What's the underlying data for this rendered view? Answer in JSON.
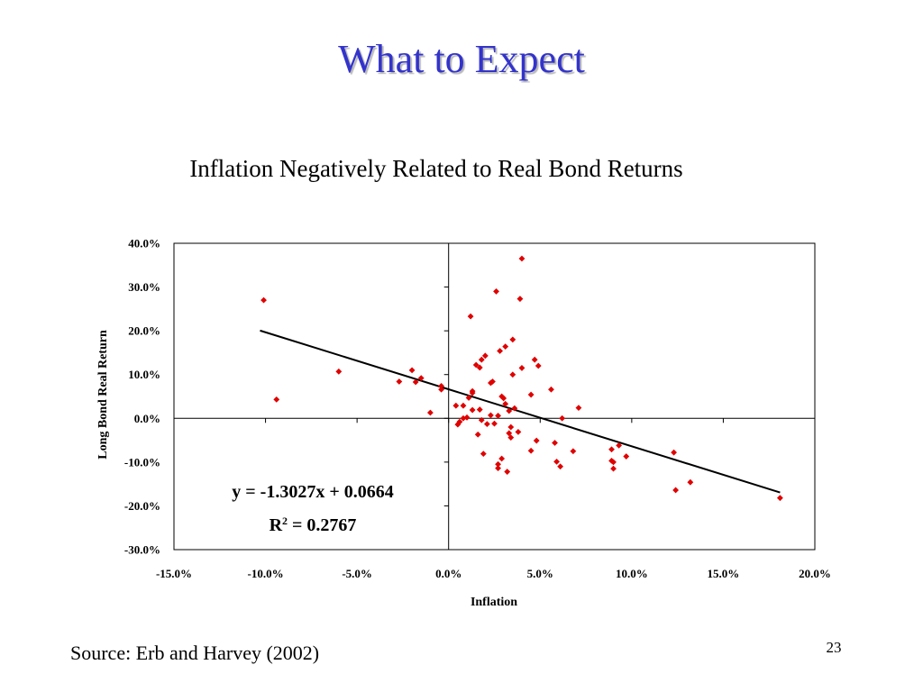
{
  "slide": {
    "title": "What to Expect",
    "source": "Source: Erb and Harvey (2002)",
    "page_number": "23"
  },
  "chart_data": {
    "type": "scatter",
    "title": "Inflation Negatively Related to Real Bond Returns",
    "xlabel": "Inflation",
    "ylabel": "Long Bond Real Return",
    "xlim": [
      -0.15,
      0.2
    ],
    "ylim": [
      -0.3,
      0.4
    ],
    "x_ticks": [
      -0.15,
      -0.1,
      -0.05,
      0.0,
      0.05,
      0.1,
      0.15,
      0.2
    ],
    "x_tick_labels": [
      "-15.0%",
      "-10.0%",
      "-5.0%",
      "0.0%",
      "5.0%",
      "10.0%",
      "15.0%",
      "20.0%"
    ],
    "y_ticks": [
      -0.3,
      -0.2,
      -0.1,
      0.0,
      0.1,
      0.2,
      0.3,
      0.4
    ],
    "y_tick_labels": [
      "-30.0%",
      "-20.0%",
      "-10.0%",
      "0.0%",
      "10.0%",
      "20.0%",
      "30.0%",
      "40.0%"
    ],
    "grid": false,
    "marker_color": "#e00000",
    "trendline": {
      "slope": -1.3027,
      "intercept": 0.0664,
      "r2": 0.2767,
      "x_range": [
        -0.103,
        0.181
      ],
      "equation_text": "y = -1.3027x + 0.0664",
      "r2_prefix": "R",
      "r2_exponent": "2",
      "r2_suffix": " = 0.2767"
    },
    "points": [
      [
        -0.101,
        0.27
      ],
      [
        -0.094,
        0.043
      ],
      [
        -0.06,
        0.107
      ],
      [
        -0.027,
        0.084
      ],
      [
        -0.02,
        0.11
      ],
      [
        -0.018,
        0.083
      ],
      [
        -0.015,
        0.092
      ],
      [
        -0.01,
        0.013
      ],
      [
        -0.004,
        0.074
      ],
      [
        -0.004,
        0.066
      ],
      [
        0.004,
        0.029
      ],
      [
        0.005,
        -0.014
      ],
      [
        0.006,
        -0.008
      ],
      [
        0.008,
        0.0
      ],
      [
        0.008,
        0.029
      ],
      [
        0.01,
        0.002
      ],
      [
        0.011,
        0.047
      ],
      [
        0.012,
        0.233
      ],
      [
        0.013,
        0.062
      ],
      [
        0.013,
        0.058
      ],
      [
        0.013,
        0.019
      ],
      [
        0.015,
        0.122
      ],
      [
        0.016,
        -0.037
      ],
      [
        0.017,
        0.116
      ],
      [
        0.017,
        0.02
      ],
      [
        0.018,
        -0.004
      ],
      [
        0.018,
        0.134
      ],
      [
        0.019,
        -0.081
      ],
      [
        0.02,
        0.143
      ],
      [
        0.021,
        -0.013
      ],
      [
        0.023,
        0.081
      ],
      [
        0.023,
        0.007
      ],
      [
        0.024,
        0.084
      ],
      [
        0.025,
        -0.012
      ],
      [
        0.026,
        0.29
      ],
      [
        0.027,
        -0.114
      ],
      [
        0.027,
        -0.105
      ],
      [
        0.027,
        0.006
      ],
      [
        0.028,
        0.154
      ],
      [
        0.029,
        -0.092
      ],
      [
        0.029,
        0.05
      ],
      [
        0.03,
        0.046
      ],
      [
        0.031,
        0.033
      ],
      [
        0.031,
        0.164
      ],
      [
        0.032,
        -0.122
      ],
      [
        0.033,
        -0.034
      ],
      [
        0.033,
        0.017
      ],
      [
        0.034,
        -0.02
      ],
      [
        0.034,
        -0.044
      ],
      [
        0.035,
        0.1
      ],
      [
        0.035,
        0.18
      ],
      [
        0.036,
        0.023
      ],
      [
        0.038,
        -0.031
      ],
      [
        0.039,
        0.273
      ],
      [
        0.04,
        0.365
      ],
      [
        0.04,
        0.115
      ],
      [
        0.045,
        0.054
      ],
      [
        0.045,
        -0.074
      ],
      [
        0.047,
        0.134
      ],
      [
        0.048,
        -0.051
      ],
      [
        0.049,
        0.12
      ],
      [
        0.056,
        0.066
      ],
      [
        0.058,
        -0.056
      ],
      [
        0.059,
        -0.099
      ],
      [
        0.061,
        -0.11
      ],
      [
        0.062,
        0.0
      ],
      [
        0.068,
        -0.075
      ],
      [
        0.071,
        0.024
      ],
      [
        0.089,
        -0.071
      ],
      [
        0.089,
        -0.097
      ],
      [
        0.09,
        -0.115
      ],
      [
        0.09,
        -0.1
      ],
      [
        0.093,
        -0.062
      ],
      [
        0.097,
        -0.087
      ],
      [
        0.123,
        -0.078
      ],
      [
        0.124,
        -0.164
      ],
      [
        0.132,
        -0.146
      ],
      [
        0.181,
        -0.182
      ]
    ]
  }
}
